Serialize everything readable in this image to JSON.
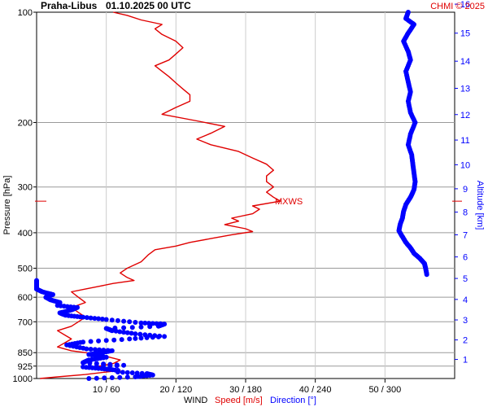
{
  "header": {
    "station": "Praha-Libus",
    "datetime": "01.10.2025 00 UTC",
    "credit": "CHMI © 2025"
  },
  "chart_data": {
    "type": "line",
    "title": "Praha-Libus   01.10.2025 00 UTC",
    "left_axis": {
      "label": "Pressure [hPa]",
      "scale": "log",
      "range": [
        100,
        1000
      ],
      "ticks": [
        100,
        200,
        300,
        400,
        500,
        600,
        700,
        850,
        925,
        1000
      ],
      "tick_labels": [
        "100",
        "200",
        "300",
        "400",
        "500",
        "600",
        "700",
        "850",
        "925",
        "1000"
      ]
    },
    "right_axis": {
      "label": "Altitude [km]",
      "ticks": [
        1,
        2,
        3,
        4,
        5,
        6,
        7,
        8,
        9,
        10,
        11,
        12,
        13,
        14,
        15,
        16
      ],
      "tick_labels": [
        "1",
        "2",
        "3",
        "4",
        "5",
        "6",
        "7",
        "8",
        "9",
        "10",
        "11",
        "12",
        "13",
        "14",
        "15",
        "16"
      ]
    },
    "bottom_axis": {
      "wind_label": "WIND",
      "speed_label": "Speed [m/s]",
      "direction_label": "Direction [°]",
      "speed_range": [
        0,
        60
      ],
      "tick_labels": [
        "10 / 60",
        "20 / 120",
        "30 / 180",
        "40 / 240",
        "50 / 300"
      ],
      "ticks_speed": [
        10,
        20,
        30,
        40,
        50
      ]
    },
    "mxws": {
      "label": "MXWS",
      "pressure": 328
    },
    "grid": true,
    "series": [
      {
        "name": "Speed [m/s]",
        "color": "#e00000",
        "unit": "m/s",
        "points": [
          [
            1000,
            0.5
          ],
          [
            990,
            3
          ],
          [
            975,
            7
          ],
          [
            960,
            10
          ],
          [
            950,
            12
          ],
          [
            940,
            10
          ],
          [
            925,
            9
          ],
          [
            910,
            11
          ],
          [
            890,
            12
          ],
          [
            870,
            10
          ],
          [
            850,
            7
          ],
          [
            840,
            5
          ],
          [
            820,
            3
          ],
          [
            800,
            4
          ],
          [
            780,
            5
          ],
          [
            760,
            4
          ],
          [
            740,
            3
          ],
          [
            720,
            5
          ],
          [
            700,
            6
          ],
          [
            680,
            7
          ],
          [
            660,
            6
          ],
          [
            640,
            5
          ],
          [
            620,
            7
          ],
          [
            600,
            6
          ],
          [
            580,
            5
          ],
          [
            570,
            7
          ],
          [
            560,
            9
          ],
          [
            550,
            11
          ],
          [
            540,
            14
          ],
          [
            530,
            13
          ],
          [
            515,
            12
          ],
          [
            500,
            13
          ],
          [
            480,
            15
          ],
          [
            460,
            16
          ],
          [
            445,
            17
          ],
          [
            435,
            20
          ],
          [
            425,
            22
          ],
          [
            415,
            25
          ],
          [
            405,
            28
          ],
          [
            397,
            31
          ],
          [
            390,
            30
          ],
          [
            380,
            27
          ],
          [
            372,
            29
          ],
          [
            365,
            28
          ],
          [
            355,
            31
          ],
          [
            345,
            32
          ],
          [
            338,
            31
          ],
          [
            328,
            35
          ],
          [
            320,
            34
          ],
          [
            310,
            33
          ],
          [
            300,
            34
          ],
          [
            290,
            33
          ],
          [
            280,
            33
          ],
          [
            270,
            34
          ],
          [
            260,
            33
          ],
          [
            250,
            31
          ],
          [
            240,
            29
          ],
          [
            230,
            25
          ],
          [
            222,
            23
          ],
          [
            214,
            25
          ],
          [
            205,
            27
          ],
          [
            198,
            23
          ],
          [
            190,
            18
          ],
          [
            182,
            20
          ],
          [
            175,
            22
          ],
          [
            168,
            22
          ],
          [
            162,
            21
          ],
          [
            156,
            20
          ],
          [
            150,
            19
          ],
          [
            145,
            18
          ],
          [
            140,
            17
          ],
          [
            135,
            19
          ],
          [
            130,
            20
          ],
          [
            125,
            21
          ],
          [
            120,
            20
          ],
          [
            115,
            18
          ],
          [
            111,
            17
          ],
          [
            108,
            18
          ],
          [
            105,
            15
          ],
          [
            102,
            13
          ],
          [
            100,
            11
          ]
        ]
      },
      {
        "name": "Direction [°]",
        "color": "#0000ff",
        "unit": "deg",
        "points": [
          [
            1000,
            45
          ],
          [
            990,
            85
          ],
          [
            978,
            100
          ],
          [
            970,
            95
          ],
          [
            960,
            70
          ],
          [
            950,
            70
          ],
          [
            940,
            56
          ],
          [
            930,
            40
          ],
          [
            920,
            75
          ],
          [
            905,
            40
          ],
          [
            890,
            45
          ],
          [
            875,
            60
          ],
          [
            860,
            45
          ],
          [
            850,
            55
          ],
          [
            840,
            65
          ],
          [
            830,
            43
          ],
          [
            810,
            26
          ],
          [
            795,
            40
          ],
          [
            780,
            80
          ],
          [
            768,
            110
          ],
          [
            755,
            85
          ],
          [
            740,
            65
          ],
          [
            730,
            60
          ],
          [
            720,
            105
          ],
          [
            710,
            110
          ],
          [
            705,
            90
          ],
          [
            690,
            60
          ],
          [
            680,
            40
          ],
          [
            672,
            25
          ],
          [
            662,
            20
          ],
          [
            650,
            30
          ],
          [
            640,
            35
          ],
          [
            632,
            18
          ],
          [
            620,
            20
          ],
          [
            610,
            12
          ],
          [
            600,
            8
          ],
          [
            590,
            14
          ],
          [
            580,
            5
          ],
          [
            570,
            0
          ],
          [
            560,
            0
          ],
          [
            555,
            0
          ],
          [
            540,
            0
          ],
          [
            520,
            336
          ],
          [
            500,
            335
          ],
          [
            485,
            334
          ],
          [
            470,
            330
          ],
          [
            455,
            325
          ],
          [
            440,
            322
          ],
          [
            425,
            318
          ],
          [
            410,
            315
          ],
          [
            395,
            312
          ],
          [
            380,
            313
          ],
          [
            365,
            315
          ],
          [
            350,
            316
          ],
          [
            335,
            318
          ],
          [
            320,
            322
          ],
          [
            305,
            325
          ],
          [
            290,
            326
          ],
          [
            275,
            325
          ],
          [
            260,
            324
          ],
          [
            245,
            323
          ],
          [
            230,
            320
          ],
          [
            215,
            322
          ],
          [
            200,
            326
          ],
          [
            188,
            322
          ],
          [
            175,
            320
          ],
          [
            165,
            322
          ],
          [
            155,
            320
          ],
          [
            145,
            318
          ],
          [
            135,
            322
          ],
          [
            128,
            320
          ],
          [
            120,
            316
          ],
          [
            114,
            320
          ],
          [
            108,
            325
          ],
          [
            104,
            318
          ],
          [
            100,
            320
          ]
        ]
      }
    ]
  }
}
